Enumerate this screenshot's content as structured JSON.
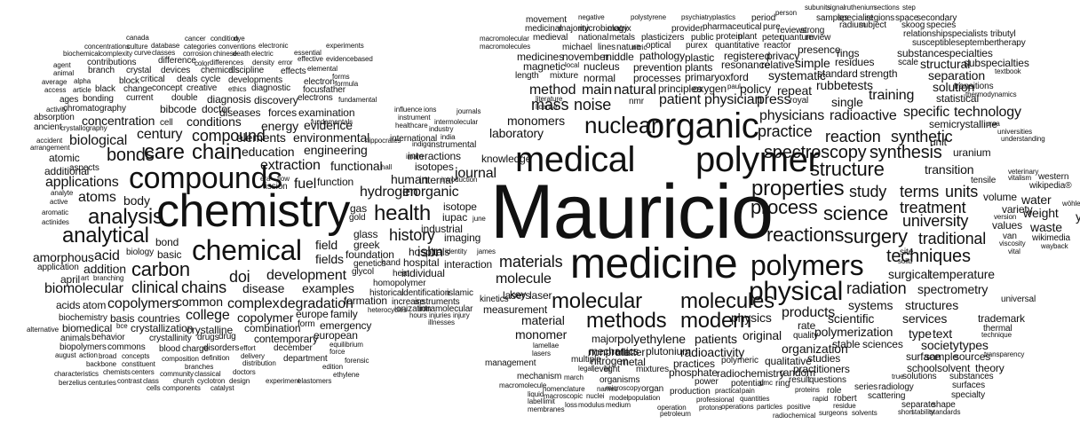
{
  "words": [
    "Mauricio",
    "medicine",
    "chemistry",
    "medical",
    "polymer",
    "organic",
    "chemical",
    "compounds",
    "polymers",
    "physical",
    "nuclear",
    "analytical",
    "analysis",
    "health",
    "properties",
    "molecular",
    "molecules",
    "methods",
    "modern",
    "process",
    "science",
    "spectroscopy",
    "synthesis",
    "surgery",
    "structure",
    "reactions",
    "techniques",
    "carbon",
    "chains",
    "materials",
    "clinical",
    "care",
    "chain",
    "bonds",
    "compound",
    "history",
    "hydrogen",
    "inorganic",
    "radiation",
    "treatment",
    "university",
    "traditional",
    "study",
    "terms",
    "units",
    "reaction",
    "synthetic",
    "practice",
    "physicians",
    "radioactive",
    "specific",
    "technology",
    "mass",
    "noise",
    "method",
    "main",
    "natural",
    "patient",
    "physician",
    "press",
    "biological",
    "century",
    "concentration",
    "conditions",
    "energy",
    "evidence",
    "engineering",
    "elements",
    "education",
    "extraction",
    "applications",
    "atoms",
    "body",
    "acid",
    "amorphous",
    "addition",
    "biomolecular",
    "copolymers",
    "common",
    "complex",
    "development",
    "degradation",
    "disease",
    "examples",
    "doi",
    "college",
    "copolymer",
    "combination",
    "contemporary",
    "european",
    "europe",
    "family",
    "emergency",
    "form",
    "formation",
    "molecule",
    "material",
    "monomer",
    "products",
    "physics",
    "spectrometry",
    "systems",
    "structures",
    "scientific",
    "services",
    "polymerization",
    "organization",
    "original",
    "rate",
    "quality",
    "radioactivity",
    "polyethylene",
    "patients",
    "major",
    "plutonium",
    "mechanics",
    "matter",
    "interaction",
    "isbn",
    "hospitals",
    "hospital",
    "individual",
    "industrial",
    "imaging",
    "iupac",
    "isotope",
    "journal",
    "knowledge",
    "laboratory",
    "monomers",
    "lasers",
    "laser",
    "key",
    "kinetics",
    "measurement",
    "international",
    "interactions",
    "isotopes",
    "human",
    "internal",
    "glass",
    "greek",
    "field",
    "fields",
    "foundation",
    "fuel",
    "functional",
    "function",
    "gas",
    "gold",
    "fission",
    "genetics",
    "hand",
    "heat",
    "glycol",
    "homopolymer",
    "historical",
    "identification",
    "islamic",
    "increase",
    "instruments",
    "intramolecular",
    "ionization",
    "heterocycles",
    "hours",
    "injuries",
    "injury",
    "illnesses",
    "temperature",
    "surgical",
    "solid",
    "site",
    "transition",
    "uranium",
    "unit",
    "semicrystalline",
    "urea",
    "universities",
    "understanding",
    "statistical",
    "solution",
    "transitions",
    "thermodynamics",
    "training",
    "single",
    "separation",
    "textbook",
    "structural",
    "subspecialties",
    "scale",
    "substance",
    "specialties",
    "standard",
    "strength",
    "systematic",
    "simple",
    "residues",
    "rings",
    "presence",
    "susceptible",
    "september",
    "therapy",
    "tributyl",
    "relationship",
    "specialists",
    "skoog",
    "species",
    "radium",
    "subject",
    "regions",
    "space",
    "secondary",
    "samples",
    "specialist",
    "subunits",
    "signal",
    "ruthenium",
    "sections",
    "step",
    "person",
    "period",
    "pure",
    "reviews",
    "strong",
    "quantum",
    "review",
    "reactor",
    "privacy",
    "registered",
    "resonance",
    "relative",
    "oxygen",
    "paul",
    "policy",
    "repeat",
    "royal",
    "rubber",
    "tests",
    "primary",
    "oxford",
    "principles",
    "processes",
    "prevention",
    "plants",
    "plastic",
    "pathology",
    "optical",
    "purex",
    "quantitative",
    "protein",
    "plant",
    "peter",
    "provider",
    "public",
    "pharmaceutical",
    "psychiatry",
    "plastics",
    "polystyrene",
    "negative",
    "majority",
    "microbiology",
    "matrix",
    "national",
    "metals",
    "plasticizers",
    "movement",
    "medicinal",
    "medieval",
    "michael",
    "lines",
    "nature",
    "nitric",
    "macromolecular",
    "macromolecules",
    "medicines",
    "november",
    "middle",
    "magnetic",
    "local",
    "nucleus",
    "mixture",
    "length",
    "normal",
    "nmr",
    "literature",
    "license",
    "weight",
    "water",
    "waste",
    "volume",
    "values",
    "variety",
    "version",
    "van",
    "viscosity",
    "vital",
    "wikimedia",
    "wayback",
    "wikipedia®",
    "western",
    "vitalism",
    "veterinary",
    "tensile",
    "wöhler",
    "y",
    "trademark",
    "universal",
    "thermal",
    "technique",
    "type",
    "text",
    "society",
    "types",
    "sources",
    "transparency",
    "surface",
    "sample",
    "school",
    "solvent",
    "theory",
    "surfaces",
    "substances",
    "specialty",
    "true",
    "solutions",
    "shape",
    "separate",
    "short",
    "stability",
    "standards",
    "series",
    "radiology",
    "scattering",
    "solution",
    "stable",
    "sciences",
    "studies",
    "practitioners",
    "radiochemistry",
    "random",
    "qualitative",
    "polymeric",
    "practices",
    "phosphate",
    "mixtures",
    "metal",
    "nonprofit",
    "nitrogen",
    "multiple",
    "lamellae",
    "lasers",
    "level",
    "light",
    "legal",
    "mechanism",
    "march",
    "management",
    "macromolecule",
    "nomenclature",
    "names",
    "microscopy",
    "organ",
    "organisms",
    "power",
    "potential",
    "pmc",
    "ring",
    "result",
    "questions",
    "role",
    "robert",
    "residue",
    "rapid",
    "proteins",
    "professional",
    "quantities",
    "practical",
    "pain",
    "production",
    "model",
    "population",
    "macroscopic",
    "nuclei",
    "liquid",
    "label",
    "limit",
    "loss",
    "modulus",
    "medium",
    "membranes",
    "operation",
    "protons",
    "operations",
    "particles",
    "positive",
    "radiochemical",
    "surgeons",
    "solvents",
    "petroleum",
    "bond",
    "biology",
    "basic",
    "application",
    "april",
    "art",
    "branching",
    "acids",
    "atom",
    "biochemistry",
    "basis",
    "countries",
    "biomedical",
    "bce",
    "crystallization",
    "crystalline",
    "alternative",
    "animals",
    "behavior",
    "crystallinity",
    "drugs",
    "drug",
    "biopolymers",
    "commons",
    "blood",
    "charge",
    "disorders",
    "effort",
    "december",
    "department",
    "edition",
    "equilibrium",
    "force",
    "forensic",
    "ethylene",
    "august",
    "action",
    "broad",
    "concepts",
    "composition",
    "definition",
    "delivery",
    "distribution",
    "branches",
    "backbone",
    "constituent",
    "characteristics",
    "chemists",
    "centers",
    "community",
    "classical",
    "doctors",
    "berzelius",
    "centuries",
    "contrast",
    "class",
    "church",
    "cyclotron",
    "design",
    "experiment",
    "elastomers",
    "cells",
    "components",
    "catalyst",
    "canada",
    "cancer",
    "condition",
    "dye",
    "experiments",
    "concentrations",
    "culture",
    "database",
    "categories",
    "conventions",
    "electronic",
    "essential",
    "biochemical",
    "complexity",
    "curve",
    "classes",
    "corrosion",
    "chinese",
    "death",
    "electric",
    "effective",
    "evidencebased",
    "contributions",
    "difference",
    "agent",
    "branch",
    "crystal",
    "devices",
    "chemicals",
    "discipline",
    "effects",
    "animal",
    "color",
    "differences",
    "density",
    "error",
    "elemental",
    "average",
    "alpha",
    "bonding",
    "block",
    "critical",
    "deals",
    "cycle",
    "developments",
    "forms",
    "access",
    "article",
    "black",
    "change",
    "concept",
    "creative",
    "ethics",
    "diagnostic",
    "electron",
    "formula",
    "ages",
    "current",
    "double",
    "diagnosis",
    "discovery",
    "electrons",
    "focus",
    "father",
    "fundamental",
    "activity",
    "chromatography",
    "bibcode",
    "doctor",
    "absorption",
    "cell",
    "diseases",
    "forces",
    "examination",
    "fundamentals",
    "ancient",
    "crystallography",
    "environmental",
    "accident",
    "arrangement",
    "atomic",
    "additional",
    "aspects",
    "analyte",
    "active",
    "aromatic",
    "actinides",
    "influence",
    "ions",
    "instrument",
    "intermolecular",
    "healthcare",
    "industry",
    "journals",
    "hippocrates",
    "indigo",
    "instrumental",
    "imam",
    "india",
    "introduction",
    "identity",
    "james",
    "hall",
    "era",
    "flow",
    "june"
  ]
}
